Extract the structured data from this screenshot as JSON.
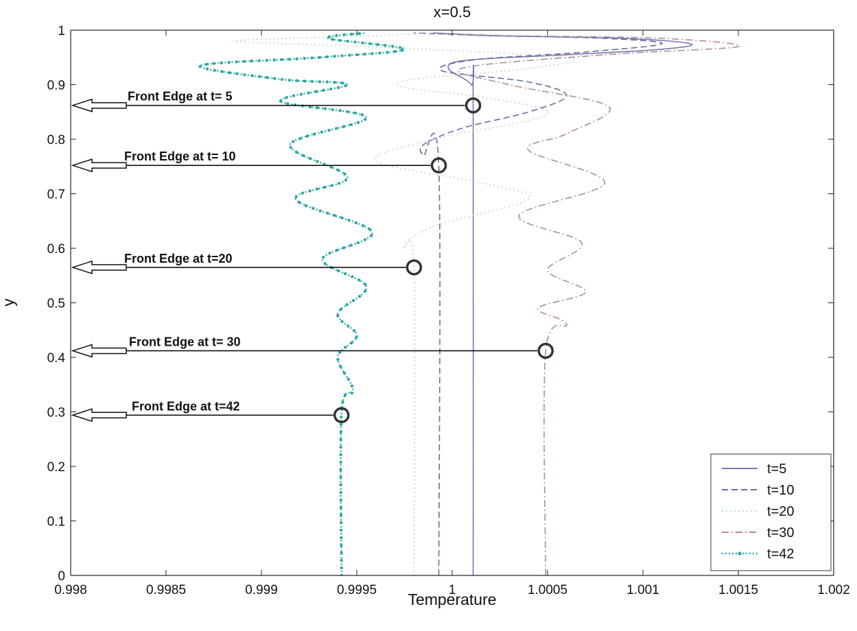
{
  "chart_data": {
    "type": "line",
    "title": "x=0.5",
    "xlabel": "Temperature",
    "ylabel": "y",
    "xlim": [
      0.998,
      1.002
    ],
    "ylim": [
      0,
      1
    ],
    "xticks": [
      "0.998",
      "0.9985",
      "0.999",
      "0.9995",
      "1",
      "1.0005",
      "1.001",
      "1.0015",
      "1.002"
    ],
    "xtick_values": [
      0.998,
      0.9985,
      0.999,
      0.9995,
      1.0,
      1.0005,
      1.001,
      1.0015,
      1.002
    ],
    "yticks": [
      "0",
      "0.1",
      "0.2",
      "0.3",
      "0.4",
      "0.5",
      "0.6",
      "0.7",
      "0.8",
      "0.9",
      "1"
    ],
    "ytick_values": [
      0,
      0.1,
      0.2,
      0.3,
      0.4,
      0.5,
      0.6,
      0.7,
      0.8,
      0.9,
      1.0
    ],
    "grid": false,
    "legend_position": "bottom-right",
    "series": [
      {
        "name": "t=5",
        "style": "solid",
        "color": "#7b74b0",
        "base_temperature": 1.00011,
        "front_y": 0.862,
        "points": [
          [
            1.00011,
            0
          ],
          [
            1.00011,
            0.86
          ],
          [
            1.0001,
            0.9
          ],
          [
            0.99998,
            0.93
          ],
          [
            1.00008,
            0.945
          ],
          [
            1.0006,
            0.955
          ],
          [
            1.0011,
            0.965
          ],
          [
            1.00125,
            0.975
          ],
          [
            1.0009,
            0.985
          ],
          [
            1.0002,
            0.99
          ],
          [
            0.9999,
            0.995
          ]
        ]
      },
      {
        "name": "t=10",
        "style": "dashed",
        "color": "#6d6a9e",
        "base_temperature": 0.99993,
        "front_y": 0.752,
        "points": [
          [
            0.99993,
            0
          ],
          [
            0.99993,
            0.75
          ],
          [
            0.99985,
            0.77
          ],
          [
            0.99985,
            0.79
          ],
          [
            1.00005,
            0.82
          ],
          [
            1.0004,
            0.85
          ],
          [
            1.0006,
            0.88
          ],
          [
            1.0004,
            0.905
          ],
          [
            0.99995,
            0.925
          ],
          [
            1.0001,
            0.945
          ],
          [
            1.0007,
            0.96
          ],
          [
            1.0011,
            0.975
          ],
          [
            1.0008,
            0.985
          ],
          [
            1.0002,
            0.99
          ],
          [
            0.9998,
            0.995
          ]
        ]
      },
      {
        "name": "t=20",
        "style": "dotted",
        "color": "#b9d9c6",
        "base_temperature": 0.9998,
        "front_y": 0.565,
        "points": [
          [
            0.9998,
            0
          ],
          [
            0.9998,
            0.565
          ],
          [
            0.99975,
            0.6
          ],
          [
            0.9999,
            0.64
          ],
          [
            1.0004,
            0.69
          ],
          [
            1.00015,
            0.72
          ],
          [
            0.9996,
            0.76
          ],
          [
            0.9999,
            0.8
          ],
          [
            1.0005,
            0.845
          ],
          [
            1.0002,
            0.875
          ],
          [
            0.99975,
            0.895
          ],
          [
            0.9998,
            0.91
          ],
          [
            1.0004,
            0.93
          ],
          [
            1.0006,
            0.95
          ],
          [
            0.99955,
            0.97
          ],
          [
            0.99885,
            0.98
          ],
          [
            0.9996,
            0.99
          ],
          [
            0.9999,
            0.995
          ]
        ]
      },
      {
        "name": "t=30",
        "style": "dashdot",
        "color": "#b08a96",
        "base_temperature": 1.00049,
        "front_y": 0.412,
        "points": [
          [
            1.00049,
            0
          ],
          [
            1.00049,
            0.41
          ],
          [
            1.0006,
            0.46
          ],
          [
            1.00045,
            0.49
          ],
          [
            1.0007,
            0.52
          ],
          [
            1.0005,
            0.56
          ],
          [
            1.00068,
            0.61
          ],
          [
            1.00035,
            0.66
          ],
          [
            1.0008,
            0.72
          ],
          [
            1.0004,
            0.78
          ],
          [
            1.0006,
            0.81
          ],
          [
            1.00082,
            0.86
          ],
          [
            1.0003,
            0.9
          ],
          [
            1.00005,
            0.93
          ],
          [
            1.0008,
            0.955
          ],
          [
            1.0015,
            0.97
          ],
          [
            1.0011,
            0.985
          ],
          [
            1.0003,
            0.99
          ],
          [
            0.9999,
            0.995
          ]
        ]
      },
      {
        "name": "t=42",
        "style": "dotted-marker",
        "color": "#2aa7a3",
        "base_temperature": 0.99942,
        "front_y": 0.294,
        "points": [
          [
            0.99942,
            0
          ],
          [
            0.99942,
            0.3
          ],
          [
            0.99948,
            0.34
          ],
          [
            0.9994,
            0.4
          ],
          [
            0.9995,
            0.44
          ],
          [
            0.9994,
            0.48
          ],
          [
            0.99955,
            0.53
          ],
          [
            0.99932,
            0.58
          ],
          [
            0.99958,
            0.63
          ],
          [
            0.99918,
            0.69
          ],
          [
            0.99945,
            0.73
          ],
          [
            0.99915,
            0.79
          ],
          [
            0.99955,
            0.84
          ],
          [
            0.9991,
            0.87
          ],
          [
            0.99945,
            0.9
          ],
          [
            0.9991,
            0.91
          ],
          [
            0.99868,
            0.935
          ],
          [
            0.9993,
            0.95
          ],
          [
            0.99975,
            0.965
          ],
          [
            0.99935,
            0.985
          ],
          [
            0.99955,
            0.995
          ]
        ]
      }
    ],
    "annotations": [
      {
        "text": "Front Edge at t= 5",
        "y": 0.862,
        "temperature": 1.00011
      },
      {
        "text": "Front Edge at t= 10",
        "y": 0.752,
        "temperature": 0.99993
      },
      {
        "text": "Front Edge at t=20",
        "y": 0.565,
        "temperature": 0.9998
      },
      {
        "text": "Front Edge at t= 30",
        "y": 0.412,
        "temperature": 1.00049
      },
      {
        "text": "Front Edge at t=42",
        "y": 0.294,
        "temperature": 0.99942
      }
    ]
  }
}
